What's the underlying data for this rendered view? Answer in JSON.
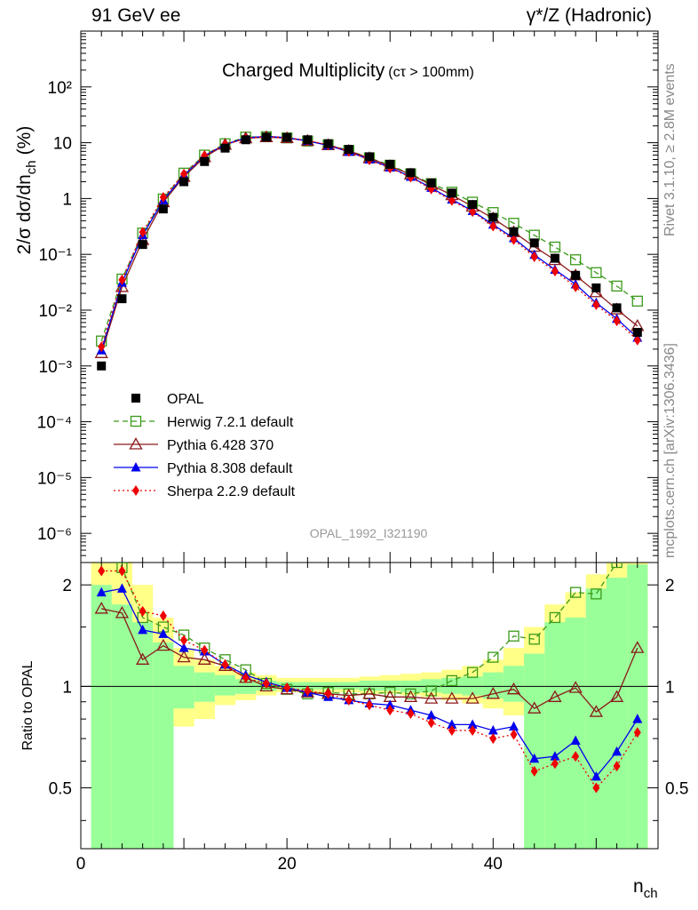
{
  "header": {
    "left": "91 GeV ee",
    "right": "γ*/Z (Hadronic)"
  },
  "side": {
    "rivet": "Rivet 3.1.10, ≥ 2.8M events",
    "mcplots": "mcplots.cern.ch [arXiv:1306.3436]"
  },
  "chart_data": {
    "type": "scatter",
    "title": "Charged Multiplicity",
    "title_suffix": "(cτ > 100mm)",
    "watermark": "OPAL_1992_I321190",
    "xlabel": "n",
    "xlabel_sub": "ch",
    "ylabel": "2/σ dσ/dn",
    "ylabel_sub": "ch",
    "ylabel_unit": "(%)",
    "ratio_ylabel": "Ratio to OPAL",
    "xlim": [
      0,
      56
    ],
    "ylim": [
      3e-07,
      1000
    ],
    "yscale": "log",
    "ratio_ylim": [
      0.33,
      2.33
    ],
    "x_ticks": [
      "0",
      "20",
      "40"
    ],
    "x_tick_values": [
      0,
      20,
      40
    ],
    "y_ticks": [
      "10⁻⁶",
      "10⁻⁵",
      "10⁻⁴",
      "10⁻³",
      "10⁻²",
      "10⁻¹",
      "1",
      "10",
      "10²"
    ],
    "y_tick_values": [
      1e-06,
      1e-05,
      0.0001,
      0.001,
      0.01,
      0.1,
      1,
      10,
      100
    ],
    "ratio_ticks": [
      "0.5",
      "1",
      "2"
    ],
    "ratio_tick_values": [
      0.5,
      1,
      2
    ],
    "legend_position": "lower-left",
    "x": [
      2,
      4,
      6,
      8,
      10,
      12,
      14,
      16,
      18,
      20,
      22,
      24,
      26,
      28,
      30,
      32,
      34,
      36,
      38,
      40,
      42,
      44,
      46,
      48,
      50,
      52,
      54
    ],
    "series": [
      {
        "name": "OPAL",
        "color": "#000000",
        "marker": "square-filled",
        "line": "none",
        "values": [
          0.001,
          0.016,
          0.15,
          0.65,
          2.0,
          4.6,
          8.0,
          11.3,
          12.6,
          12.4,
          11.3,
          9.6,
          7.6,
          5.6,
          4.1,
          2.9,
          1.9,
          1.25,
          0.78,
          0.46,
          0.255,
          0.16,
          0.085,
          0.042,
          0.025,
          0.011,
          0.004
        ]
      },
      {
        "name": "Herwig 7.2.1 default",
        "color": "#3a9a1a",
        "marker": "square-open",
        "line": "dashed",
        "values": [
          0.0028,
          0.036,
          0.24,
          0.98,
          2.85,
          6.0,
          9.6,
          12.6,
          12.8,
          12.2,
          10.7,
          9.2,
          7.25,
          5.35,
          3.95,
          2.75,
          1.85,
          1.3,
          0.86,
          0.56,
          0.36,
          0.22,
          0.135,
          0.08,
          0.047,
          0.027,
          0.0145
        ]
      },
      {
        "name": "Pythia 6.428 370",
        "color": "#8b1a1a",
        "marker": "triangle-open",
        "line": "solid",
        "values": [
          0.0017,
          0.026,
          0.18,
          0.86,
          2.45,
          5.5,
          9.2,
          12.0,
          12.6,
          12.1,
          10.8,
          9.1,
          7.15,
          5.3,
          3.8,
          2.7,
          1.75,
          1.15,
          0.72,
          0.44,
          0.25,
          0.137,
          0.079,
          0.042,
          0.021,
          0.0103,
          0.0052
        ]
      },
      {
        "name": "Pythia 8.308 default",
        "color": "#0000ee",
        "marker": "triangle-filled",
        "line": "solid",
        "values": [
          0.0019,
          0.031,
          0.22,
          0.93,
          2.6,
          5.85,
          9.3,
          12.2,
          13.0,
          12.3,
          10.8,
          8.9,
          6.9,
          5.0,
          3.6,
          2.45,
          1.55,
          0.96,
          0.6,
          0.34,
          0.195,
          0.098,
          0.053,
          0.029,
          0.0135,
          0.007,
          0.0032
        ]
      },
      {
        "name": "Sherpa 2.2.9 default",
        "color": "#ee0000",
        "marker": "diamond-filled",
        "line": "dotted",
        "values": [
          0.0022,
          0.035,
          0.25,
          1.05,
          2.75,
          5.9,
          9.3,
          12.0,
          12.9,
          12.3,
          11.0,
          9.1,
          6.95,
          4.9,
          3.5,
          2.4,
          1.48,
          0.92,
          0.58,
          0.32,
          0.183,
          0.09,
          0.05,
          0.026,
          0.0125,
          0.0064,
          0.0029
        ]
      }
    ],
    "ratio_series": [
      {
        "name": "Herwig 7.2.1 default",
        "values": [
          2.8,
          2.25,
          1.6,
          1.5,
          1.42,
          1.3,
          1.2,
          1.12,
          1.02,
          0.98,
          0.95,
          0.96,
          0.95,
          0.95,
          0.96,
          0.95,
          0.97,
          1.04,
          1.1,
          1.22,
          1.41,
          1.38,
          1.6,
          1.9,
          1.88,
          2.33,
          3.0
        ]
      },
      {
        "name": "Pythia 6.428 370",
        "values": [
          1.7,
          1.65,
          1.2,
          1.32,
          1.22,
          1.2,
          1.15,
          1.06,
          1.0,
          0.98,
          0.96,
          0.95,
          0.94,
          0.95,
          0.93,
          0.93,
          0.92,
          0.92,
          0.92,
          0.95,
          0.98,
          0.86,
          0.93,
          0.99,
          0.84,
          0.93,
          1.3
        ]
      },
      {
        "name": "Pythia 8.308 default",
        "values": [
          1.9,
          1.95,
          1.47,
          1.43,
          1.3,
          1.27,
          1.16,
          1.08,
          1.03,
          0.99,
          0.96,
          0.93,
          0.91,
          0.89,
          0.88,
          0.85,
          0.82,
          0.77,
          0.77,
          0.74,
          0.76,
          0.61,
          0.62,
          0.69,
          0.54,
          0.64,
          0.8
        ]
      },
      {
        "name": "Sherpa 2.2.9 default",
        "values": [
          2.2,
          2.2,
          1.67,
          1.62,
          1.37,
          1.28,
          1.16,
          1.06,
          1.02,
          0.99,
          0.97,
          0.95,
          0.91,
          0.88,
          0.85,
          0.83,
          0.78,
          0.74,
          0.74,
          0.7,
          0.72,
          0.56,
          0.59,
          0.62,
          0.5,
          0.58,
          0.73
        ]
      }
    ],
    "ratio_bands": {
      "edges": [
        1,
        3,
        5,
        7,
        9,
        11,
        13,
        15,
        17,
        19,
        21,
        23,
        25,
        27,
        29,
        31,
        33,
        35,
        37,
        39,
        41,
        43,
        45,
        47,
        49,
        51,
        53,
        55
      ],
      "green_low": [
        0.33,
        0.33,
        0.33,
        0.33,
        0.86,
        0.9,
        0.94,
        0.95,
        0.97,
        0.98,
        0.98,
        0.98,
        0.98,
        0.97,
        0.97,
        0.96,
        0.96,
        0.95,
        0.94,
        0.92,
        0.9,
        0.33,
        0.33,
        0.33,
        0.33,
        0.33,
        0.33
      ],
      "green_high": [
        2.0,
        1.75,
        1.55,
        1.35,
        1.15,
        1.1,
        1.08,
        1.05,
        1.04,
        1.03,
        1.03,
        1.03,
        1.03,
        1.04,
        1.04,
        1.04,
        1.05,
        1.06,
        1.07,
        1.1,
        1.15,
        1.25,
        1.55,
        1.6,
        1.95,
        2.1,
        2.3
      ],
      "yellow_low": [
        0.33,
        0.33,
        0.33,
        0.33,
        0.76,
        0.8,
        0.88,
        0.91,
        0.94,
        0.96,
        0.96,
        0.96,
        0.96,
        0.95,
        0.95,
        0.94,
        0.93,
        0.91,
        0.89,
        0.86,
        0.82,
        0.33,
        0.33,
        0.33,
        0.38,
        0.33,
        0.33
      ],
      "yellow_high": [
        2.33,
        2.33,
        2.0,
        1.6,
        1.3,
        1.2,
        1.15,
        1.1,
        1.08,
        1.06,
        1.06,
        1.06,
        1.06,
        1.07,
        1.08,
        1.09,
        1.1,
        1.12,
        1.15,
        1.2,
        1.3,
        1.5,
        1.75,
        1.9,
        2.15,
        2.33,
        2.33
      ]
    }
  }
}
